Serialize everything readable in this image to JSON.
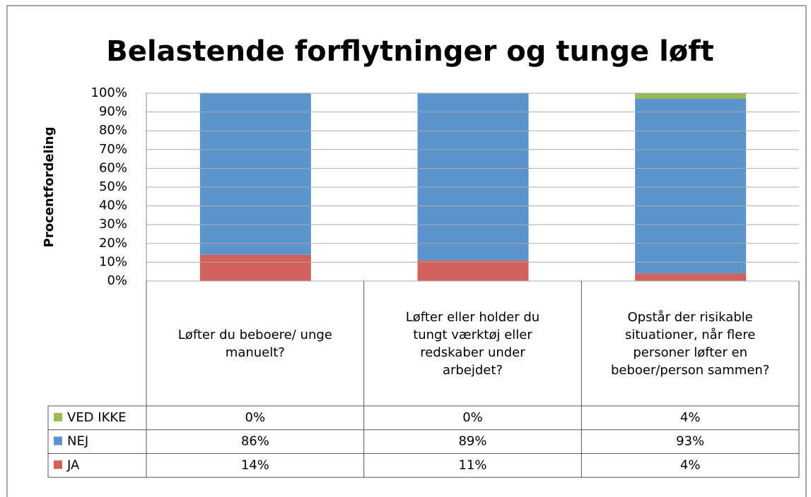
{
  "chart_data": {
    "type": "stacked_bar",
    "title": "Belastende forflytninger og tunge løft",
    "y_label": "Procentfordeling",
    "categories": [
      "Løfter du beboere/ unge manuelt?",
      "Løfter eller holder du tungt værktøj eller redskaber under arbejdet?",
      "Opstår der risikable situationer, når flere personer løfter en beboer/person sammen?"
    ],
    "series": [
      {
        "name": "JA",
        "color": "#d0615b",
        "values": [
          14,
          11,
          4
        ],
        "value_labels": [
          "14%",
          "11%",
          "4%"
        ]
      },
      {
        "name": "NEJ",
        "color": "#5b93cb",
        "values": [
          86,
          89,
          93
        ],
        "value_labels": [
          "86%",
          "89%",
          "93%"
        ]
      },
      {
        "name": "VED IKKE",
        "color": "#9bbb59",
        "values": [
          0,
          0,
          4
        ],
        "value_labels": [
          "0%",
          "0%",
          "4%"
        ]
      }
    ],
    "ylim": [
      0,
      100
    ],
    "yticks": [
      {
        "value": 0,
        "label": "0%"
      },
      {
        "value": 10,
        "label": "10%"
      },
      {
        "value": 20,
        "label": "20%"
      },
      {
        "value": 30,
        "label": "30%"
      },
      {
        "value": 40,
        "label": "40%"
      },
      {
        "value": 50,
        "label": "50%"
      },
      {
        "value": 60,
        "label": "60%"
      },
      {
        "value": 70,
        "label": "70%"
      },
      {
        "value": 80,
        "label": "80%"
      },
      {
        "value": 90,
        "label": "90%"
      },
      {
        "value": 100,
        "label": "100%"
      }
    ],
    "grid": true
  }
}
